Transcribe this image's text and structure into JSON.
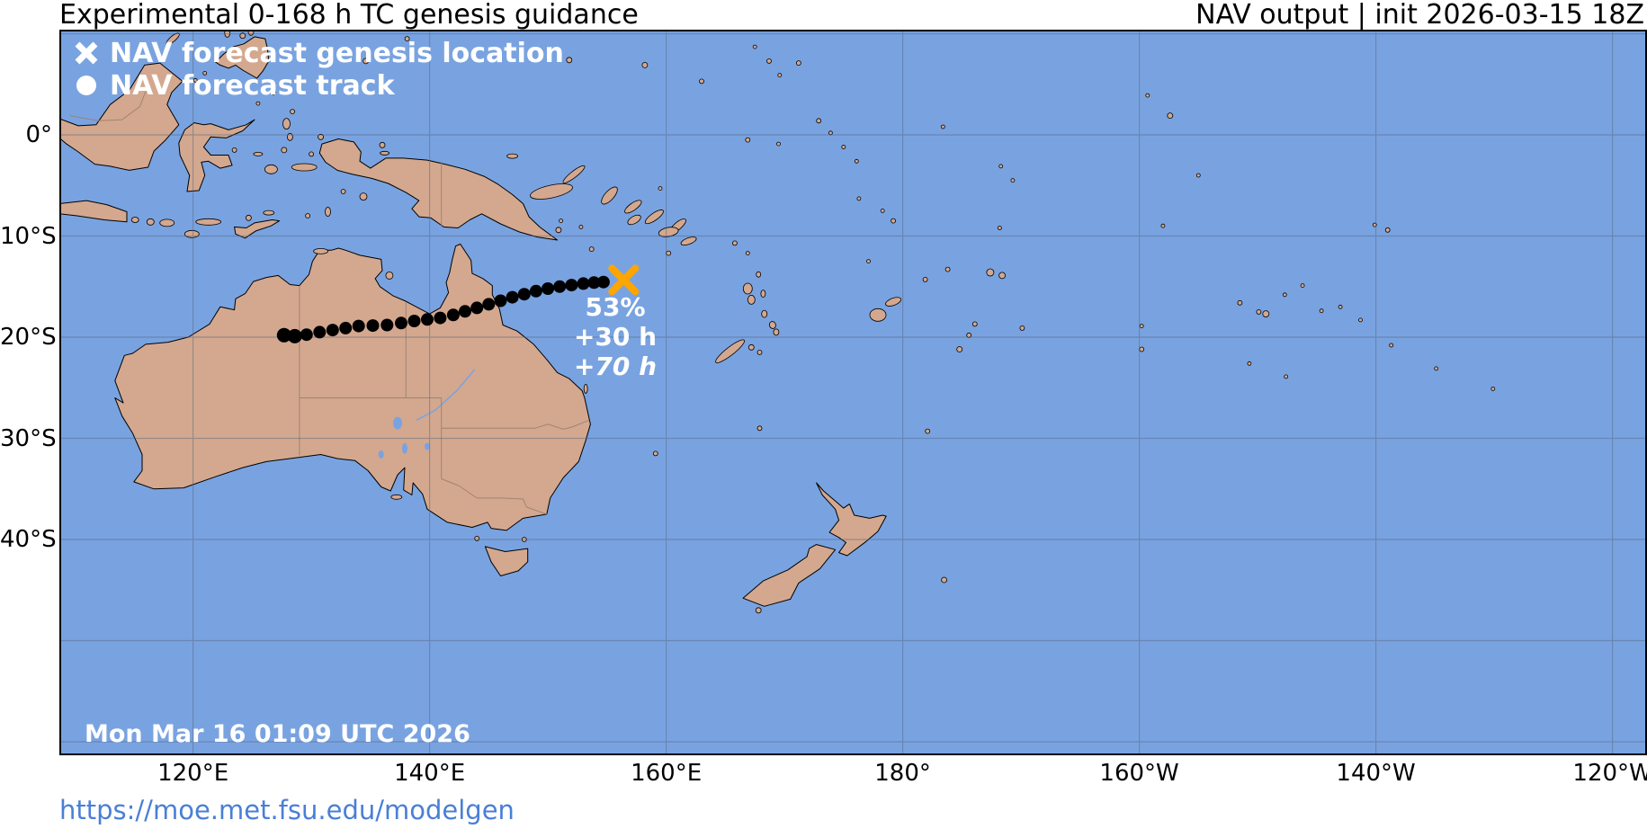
{
  "header": {
    "title_left": "Experimental 0-168 h TC genesis guidance",
    "title_right": "NAV output | init 2026-03-15 18Z"
  },
  "legend": {
    "genesis_label": "NAV forecast genesis location",
    "track_label": "NAV forecast track"
  },
  "map_annotations": {
    "probability": "53%",
    "genesis_hour_label": "+30 h",
    "end_hour_label": "+70 h",
    "timestamp": "Mon Mar 16 01:09 UTC 2026"
  },
  "footer": {
    "url": "https://moe.met.fsu.edu/modelgen"
  },
  "axes": {
    "lat_ticks": [
      {
        "label": "0°",
        "lat": 0
      },
      {
        "label": "10°S",
        "lat": -10
      },
      {
        "label": "20°S",
        "lat": -20
      },
      {
        "label": "30°S",
        "lat": -30
      },
      {
        "label": "40°S",
        "lat": -40
      }
    ],
    "lon_ticks": [
      {
        "label": "120°E",
        "lon": 120
      },
      {
        "label": "140°E",
        "lon": 140
      },
      {
        "label": "160°E",
        "lon": 160
      },
      {
        "label": "180°",
        "lon": 180
      },
      {
        "label": "160°W",
        "lon": -160
      },
      {
        "label": "140°W",
        "lon": -140
      },
      {
        "label": "120°W",
        "lon": -120
      }
    ],
    "extra_grid_lats": [
      10,
      -50,
      -60
    ]
  },
  "colors": {
    "ocean": "#79A3E0",
    "land": "#D3A88F",
    "coastline": "#000000",
    "grid": "#55657F",
    "state_border": "#9C7F6E",
    "track": "#000000",
    "genesis_marker": "#FFA500",
    "map_text": "#FFFFFF",
    "title_text": "#000000",
    "link": "#4A7FD6"
  },
  "chart_data": {
    "type": "map-track",
    "title": "Experimental 0-168 h TC genesis guidance",
    "model": "NAV",
    "init": "2026-03-15 18Z",
    "projection_extent": {
      "lon_min_east": 108.7,
      "lon_max_west": -117.1,
      "lat_max": 10.4,
      "lat_min": -61.3
    },
    "genesis": {
      "lon": 156.4,
      "lat": -14.35,
      "probability_pct": 53,
      "forecast_hour": 30
    },
    "track_end_forecast_hour": 70,
    "track_points": [
      [
        127.7,
        -19.8
      ],
      [
        128.6,
        -19.9
      ],
      [
        129.6,
        -19.75
      ],
      [
        130.7,
        -19.5
      ],
      [
        131.8,
        -19.3
      ],
      [
        132.9,
        -19.1
      ],
      [
        134.0,
        -18.9
      ],
      [
        135.2,
        -18.85
      ],
      [
        136.4,
        -18.8
      ],
      [
        137.6,
        -18.6
      ],
      [
        138.7,
        -18.4
      ],
      [
        139.8,
        -18.25
      ],
      [
        140.9,
        -18.1
      ],
      [
        142.0,
        -17.8
      ],
      [
        143.0,
        -17.45
      ],
      [
        144.0,
        -17.1
      ],
      [
        145.0,
        -16.75
      ],
      [
        146.0,
        -16.4
      ],
      [
        147.0,
        -16.05
      ],
      [
        148.0,
        -15.75
      ],
      [
        149.0,
        -15.45
      ],
      [
        150.0,
        -15.2
      ],
      [
        151.0,
        -15.0
      ],
      [
        152.0,
        -14.85
      ],
      [
        153.0,
        -14.7
      ],
      [
        153.9,
        -14.6
      ],
      [
        154.7,
        -14.55
      ]
    ]
  }
}
